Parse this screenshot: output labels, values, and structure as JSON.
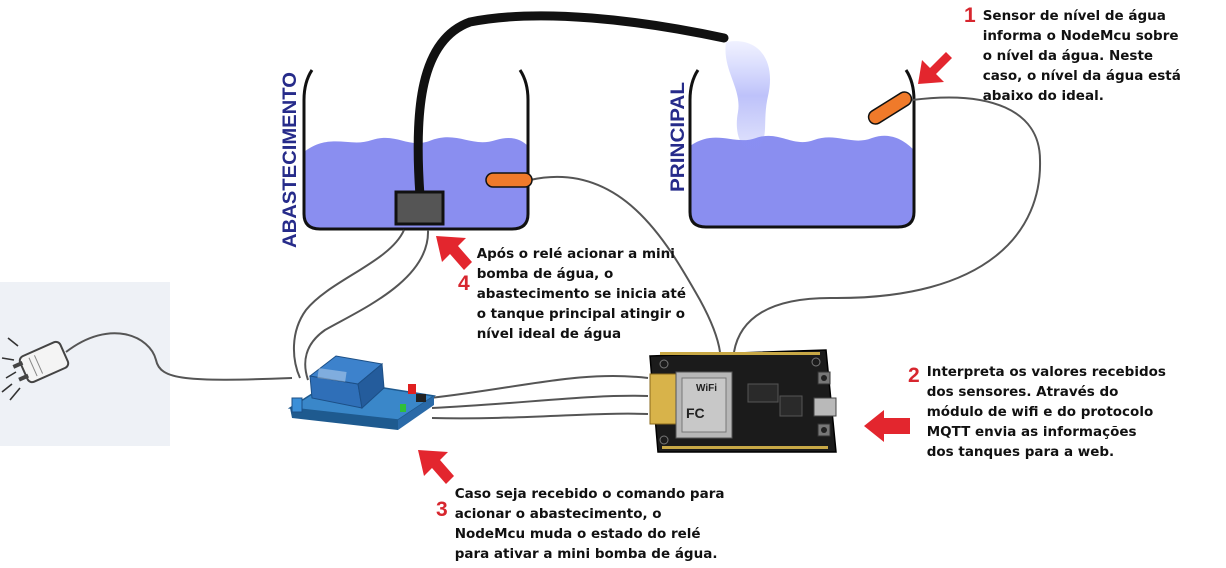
{
  "tanks": {
    "supply_label": "ABASTECIMENTO",
    "main_label": "PRINCIPAL"
  },
  "steps": [
    {
      "number": "1",
      "text": "Sensor de nível de água\ninforma o NodeMcu sobre\no nível da água. Neste\ncaso, o nível da água está\nabaixo do ideal."
    },
    {
      "number": "2",
      "text": "Interpreta os valores recebidos\ndos sensores. Através do\nmódulo de wifi e do protocolo\nMQTT envia as informações\ndos tanques para a web."
    },
    {
      "number": "3",
      "text": "Caso seja recebido o comando para\nacionar o abastecimento, o\nNodeMcu muda o estado do relé\npara ativar a mini bomba de água."
    },
    {
      "number": "4",
      "text": "Após o relé acionar a mini\nbomba de água, o\nabastecimento se inicia até\no tanque principal atingir o\nnível ideal de água"
    }
  ],
  "board": {
    "chip_brand": "WiFi",
    "chip_fc": "FC"
  },
  "colors": {
    "water": "#8a8ef0",
    "tank_label": "#262b8a",
    "arrow": "#e3262e",
    "sensor": "#f07a2a",
    "wire": "#555555",
    "hose": "#111111",
    "relay": "#2c6db3",
    "board": "#1b1b1b"
  }
}
